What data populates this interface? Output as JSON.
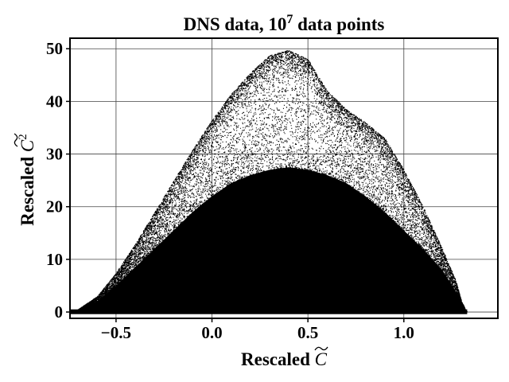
{
  "chart_data": {
    "type": "scatter",
    "title": {
      "prefix": "DNS data, 10",
      "superscript": "7",
      "suffix": " data points"
    },
    "xlabel": {
      "text": "Rescaled ",
      "symbol": "C"
    },
    "ylabel": {
      "text": "Rescaled ",
      "symbol": "C",
      "superscript": "2"
    },
    "xlim": [
      -0.74,
      1.49
    ],
    "ylim": [
      -1.2,
      52
    ],
    "x_ticks": [
      {
        "value": -0.5,
        "label": "−0.5"
      },
      {
        "value": 0.0,
        "label": "0.0"
      },
      {
        "value": 0.5,
        "label": "0.5"
      },
      {
        "value": 1.0,
        "label": "1.0"
      }
    ],
    "y_ticks": [
      {
        "value": 0,
        "label": "0"
      },
      {
        "value": 10,
        "label": "10"
      },
      {
        "value": 20,
        "label": "20"
      },
      {
        "value": 30,
        "label": "30"
      },
      {
        "value": 40,
        "label": "40"
      },
      {
        "value": 50,
        "label": "50"
      }
    ],
    "grid": true,
    "marker_color": "#000000",
    "series": [
      {
        "envelope_outer": [
          {
            "x": -0.74,
            "y": 0
          },
          {
            "x": -0.7,
            "y": 0.5
          },
          {
            "x": -0.6,
            "y": 3
          },
          {
            "x": -0.5,
            "y": 7.5
          },
          {
            "x": -0.4,
            "y": 13
          },
          {
            "x": -0.3,
            "y": 19
          },
          {
            "x": -0.2,
            "y": 25
          },
          {
            "x": -0.1,
            "y": 31
          },
          {
            "x": 0.0,
            "y": 36.5
          },
          {
            "x": 0.1,
            "y": 41.5
          },
          {
            "x": 0.2,
            "y": 45.5
          },
          {
            "x": 0.3,
            "y": 48.8
          },
          {
            "x": 0.4,
            "y": 49.8
          },
          {
            "x": 0.5,
            "y": 48
          },
          {
            "x": 0.6,
            "y": 42
          },
          {
            "x": 0.7,
            "y": 38.5
          },
          {
            "x": 0.8,
            "y": 36
          },
          {
            "x": 0.9,
            "y": 33
          },
          {
            "x": 1.0,
            "y": 27
          },
          {
            "x": 1.1,
            "y": 20
          },
          {
            "x": 1.2,
            "y": 12
          },
          {
            "x": 1.27,
            "y": 6
          },
          {
            "x": 1.3,
            "y": 2
          },
          {
            "x": 1.33,
            "y": 0
          }
        ],
        "envelope_dense": [
          {
            "x": -0.74,
            "y": 0
          },
          {
            "x": -0.7,
            "y": 0.4
          },
          {
            "x": -0.6,
            "y": 2
          },
          {
            "x": -0.5,
            "y": 5
          },
          {
            "x": -0.4,
            "y": 8.5
          },
          {
            "x": -0.3,
            "y": 12
          },
          {
            "x": -0.2,
            "y": 15.5
          },
          {
            "x": -0.1,
            "y": 19
          },
          {
            "x": 0.0,
            "y": 22
          },
          {
            "x": 0.1,
            "y": 24.5
          },
          {
            "x": 0.2,
            "y": 26
          },
          {
            "x": 0.3,
            "y": 27
          },
          {
            "x": 0.4,
            "y": 27.5
          },
          {
            "x": 0.5,
            "y": 27
          },
          {
            "x": 0.6,
            "y": 26
          },
          {
            "x": 0.7,
            "y": 24.5
          },
          {
            "x": 0.8,
            "y": 22
          },
          {
            "x": 0.9,
            "y": 19
          },
          {
            "x": 1.0,
            "y": 15.5
          },
          {
            "x": 1.1,
            "y": 12
          },
          {
            "x": 1.2,
            "y": 8
          },
          {
            "x": 1.27,
            "y": 4
          },
          {
            "x": 1.31,
            "y": 1.5
          },
          {
            "x": 1.33,
            "y": 0
          }
        ]
      }
    ]
  }
}
